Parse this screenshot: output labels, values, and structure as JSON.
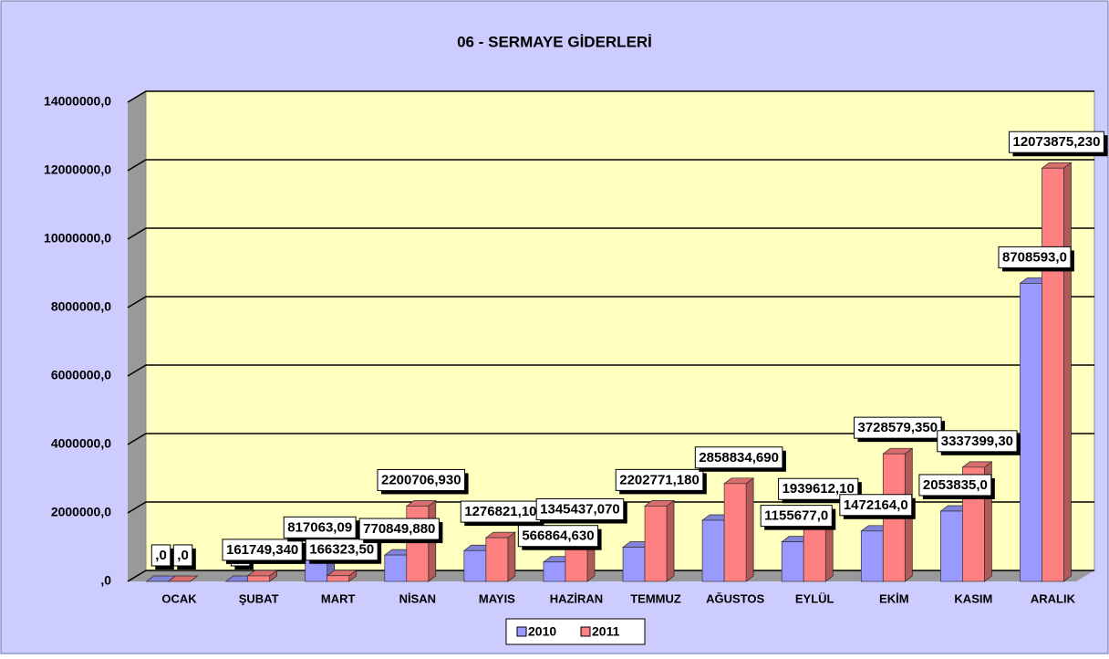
{
  "chart_data": {
    "type": "bar",
    "title": "06 - SERMAYE GİDERLERİ",
    "categories": [
      "OCAK",
      "ŞUBAT",
      "MART",
      "NİSAN",
      "MAYIS",
      "HAZİRAN",
      "TEMMUZ",
      "AĞUSTOS",
      "EYLÜL",
      "EKİM",
      "KASIM",
      "ARALIK"
    ],
    "series": [
      {
        "name": "2010",
        "color": "#9999ff",
        "values": [
          0,
          0,
          817063.09,
          770849.88,
          900000,
          566864.63,
          1000000,
          1787076,
          1155677,
          1472164,
          2053835,
          8708593
        ],
        "value_labels": [
          ",0",
          ",0",
          "817063,09",
          "770849,880",
          null,
          "566864,630",
          null,
          null,
          "1155677,0",
          "1472164,0",
          "2053835,0",
          "8708593,0"
        ]
      },
      {
        "name": "2011",
        "color": "#ff8080",
        "values": [
          0,
          161749.34,
          166323.5,
          2200706.93,
          1276821.1,
          1345437.07,
          2202771.18,
          2858834.69,
          1939612.1,
          3728579.35,
          3337399.3,
          12073875.23
        ],
        "value_labels": [
          ",0",
          "161749,340",
          "166323,50",
          "2200706,930",
          "1276821,10",
          "1345437,070",
          "2202771,180",
          "2858834,690",
          "1939612,10",
          "3728579,350",
          "3337399,30",
          "12073875,230"
        ]
      }
    ],
    "ylim": [
      0,
      14000000
    ],
    "yticks": [
      {
        "value": 0,
        "label": ",0"
      },
      {
        "value": 2000000,
        "label": "2000000,0"
      },
      {
        "value": 4000000,
        "label": "4000000,0"
      },
      {
        "value": 6000000,
        "label": "6000000,0"
      },
      {
        "value": 8000000,
        "label": "8000000,0"
      },
      {
        "value": 10000000,
        "label": "10000000,0"
      },
      {
        "value": 12000000,
        "label": "12000000,0"
      },
      {
        "value": 14000000,
        "label": "14000000,0"
      }
    ],
    "grid": true,
    "legend": "bottom"
  }
}
